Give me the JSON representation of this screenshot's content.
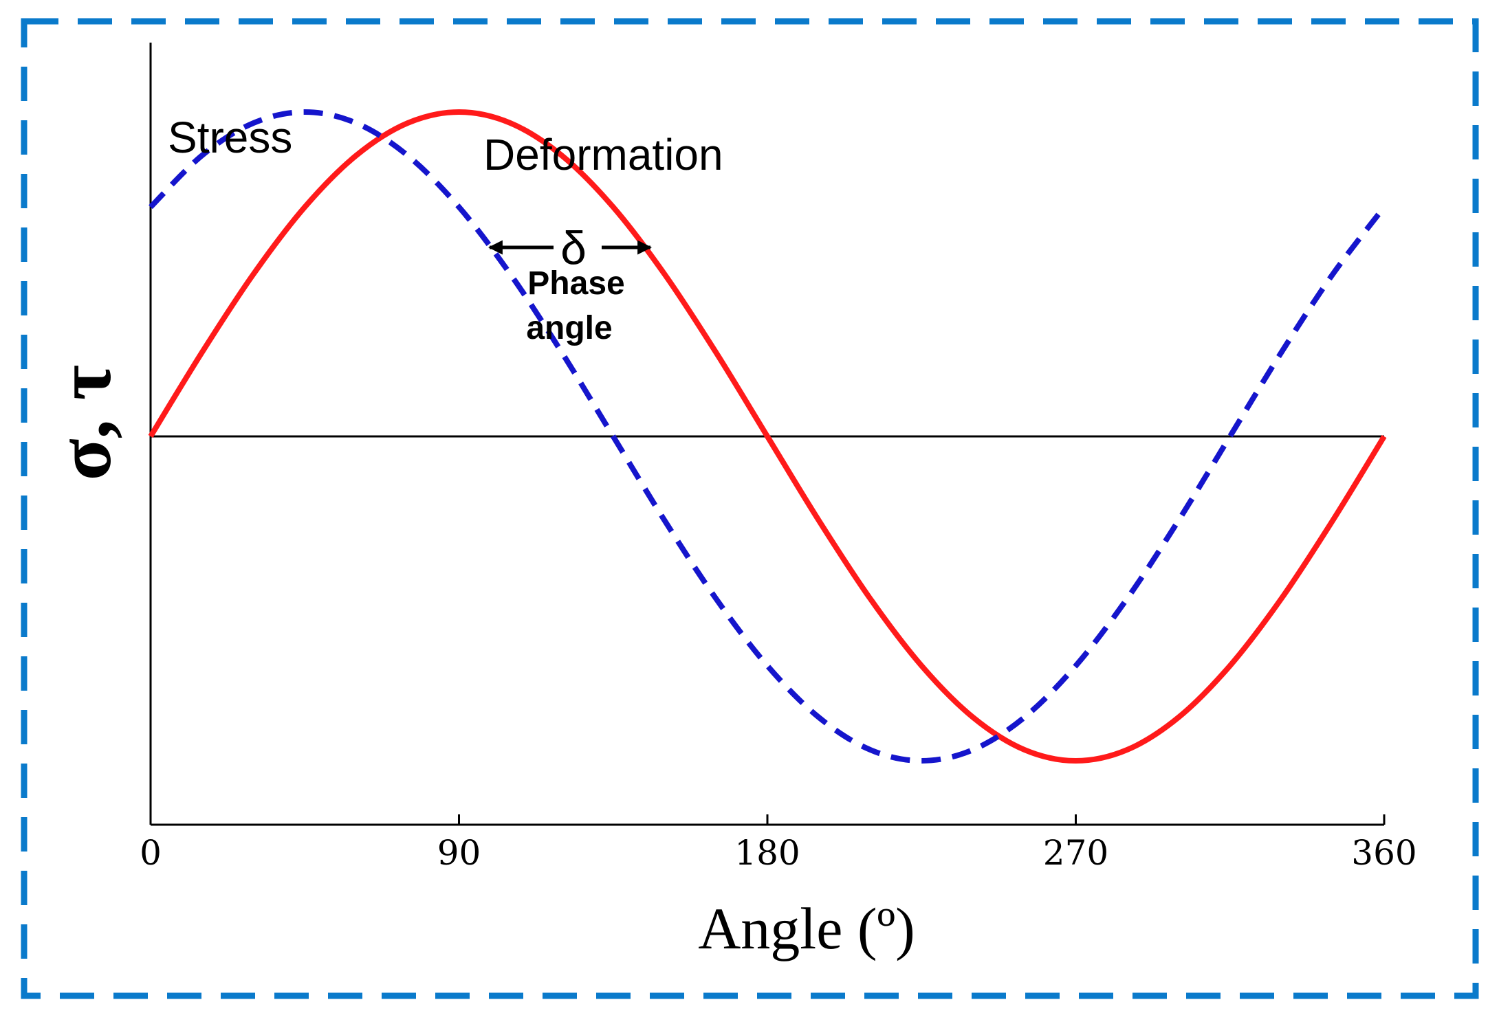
{
  "chart_data": {
    "type": "line",
    "x": [
      0,
      15,
      30,
      45,
      60,
      75,
      90,
      105,
      120,
      135,
      150,
      165,
      180,
      195,
      210,
      225,
      240,
      255,
      270,
      285,
      300,
      315,
      330,
      345,
      360
    ],
    "series": [
      {
        "name": "Stress",
        "style": "dashed",
        "color": "#1515cc",
        "values": [
          0.707,
          0.866,
          0.966,
          1.0,
          0.966,
          0.866,
          0.707,
          0.5,
          0.259,
          0.0,
          -0.259,
          -0.5,
          -0.707,
          -0.866,
          -0.966,
          -1.0,
          -0.966,
          -0.866,
          -0.707,
          -0.5,
          -0.259,
          0.0,
          0.259,
          0.5,
          0.707
        ]
      },
      {
        "name": "Deformation",
        "style": "solid",
        "color": "#ff1a1a",
        "values": [
          0.0,
          0.259,
          0.5,
          0.707,
          0.866,
          0.966,
          1.0,
          0.966,
          0.866,
          0.707,
          0.5,
          0.259,
          0.0,
          -0.259,
          -0.5,
          -0.707,
          -0.866,
          -0.966,
          -1.0,
          -0.966,
          -0.866,
          -0.707,
          -0.5,
          -0.259,
          0.0
        ]
      }
    ],
    "xlabel": "Angle (º)",
    "ylabel": "σ, τ",
    "xticks": [
      "0",
      "90",
      "180",
      "270",
      "360"
    ],
    "xtick_values": [
      0,
      90,
      180,
      270,
      360
    ],
    "xlim": [
      0,
      360
    ],
    "ylim": [
      -1.2,
      1.2
    ],
    "phase_shift_deg": 45,
    "annotations": {
      "stress_label": "Stress",
      "deformation_label": "Deformation",
      "delta_symbol": "δ",
      "phase_line1": "Phase",
      "phase_line2": "angle"
    },
    "border_color": "#0a7acb",
    "grid": false
  }
}
